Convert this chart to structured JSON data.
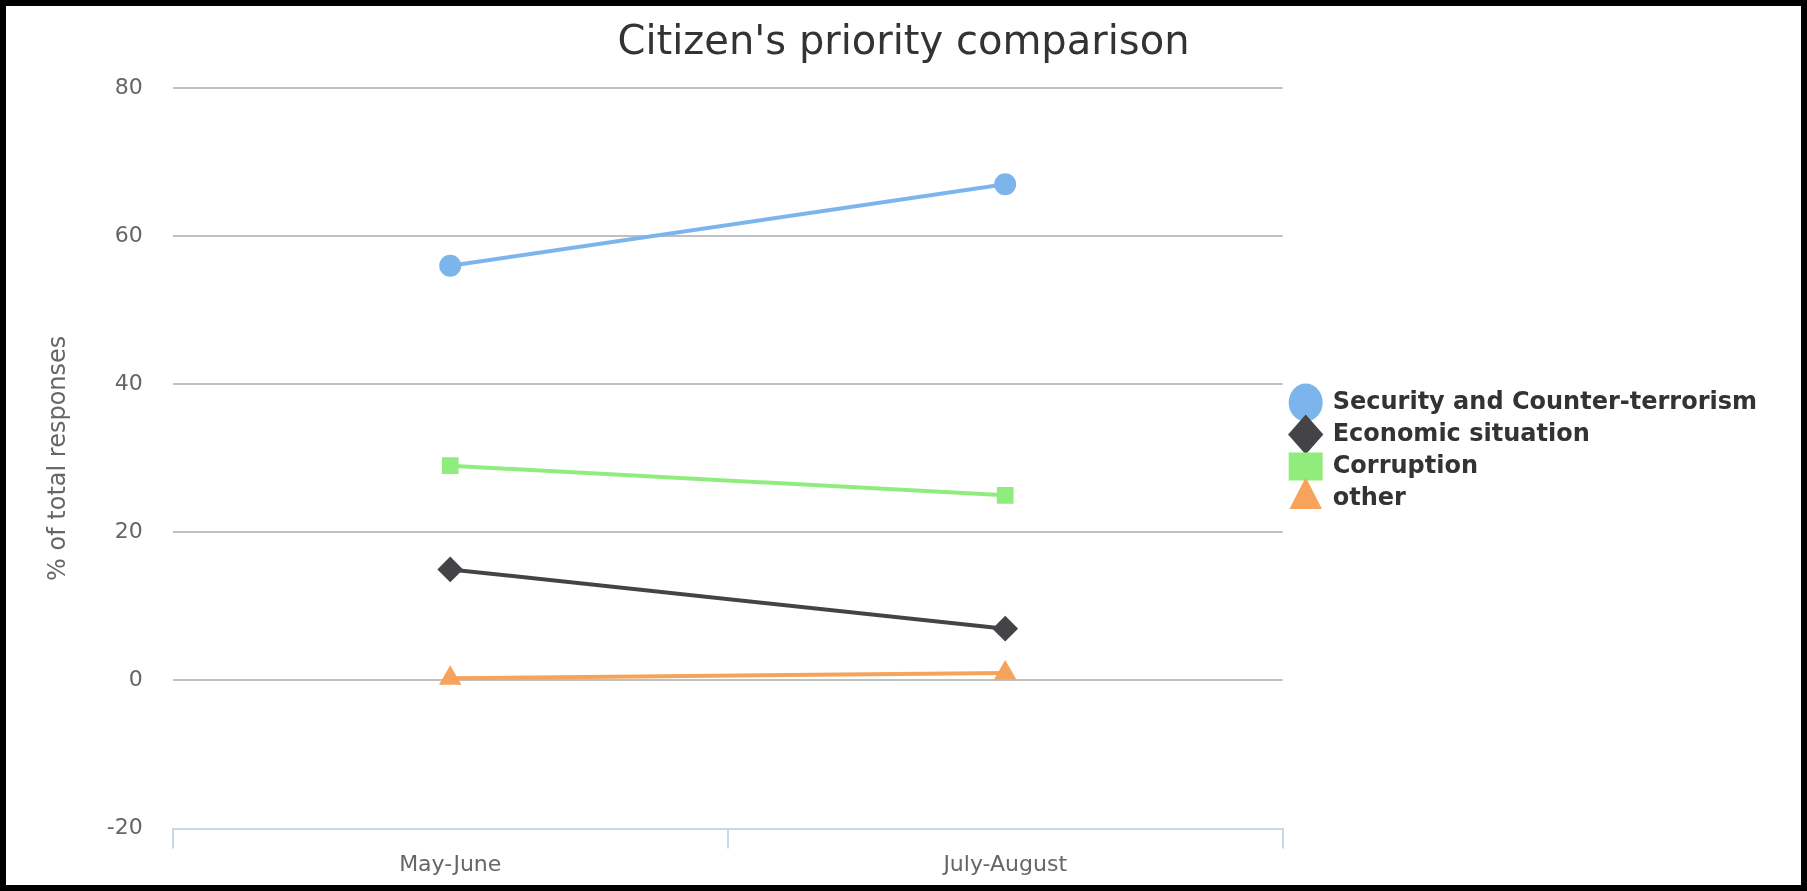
{
  "chart_data": {
    "type": "line",
    "title": "Citizen's priority comparison",
    "ylabel": "% of total responses",
    "categories": [
      "May-June",
      "July-August"
    ],
    "series": [
      {
        "name": "Security and Counter-terrorism",
        "color": "#7cb5ec",
        "marker": "circle",
        "values": [
          56,
          67
        ]
      },
      {
        "name": "Economic situation",
        "color": "#434348",
        "marker": "diamond",
        "values": [
          15,
          7
        ]
      },
      {
        "name": "Corruption",
        "color": "#90ed7d",
        "marker": "square",
        "values": [
          29,
          25
        ]
      },
      {
        "name": "other",
        "color": "#f7a35c",
        "marker": "triangle",
        "values": [
          0.3,
          1
        ]
      }
    ],
    "ylim": [
      -20,
      80
    ],
    "yticks": [
      -20,
      0,
      20,
      40,
      60,
      80
    ],
    "grid": "y",
    "legend": "right"
  }
}
